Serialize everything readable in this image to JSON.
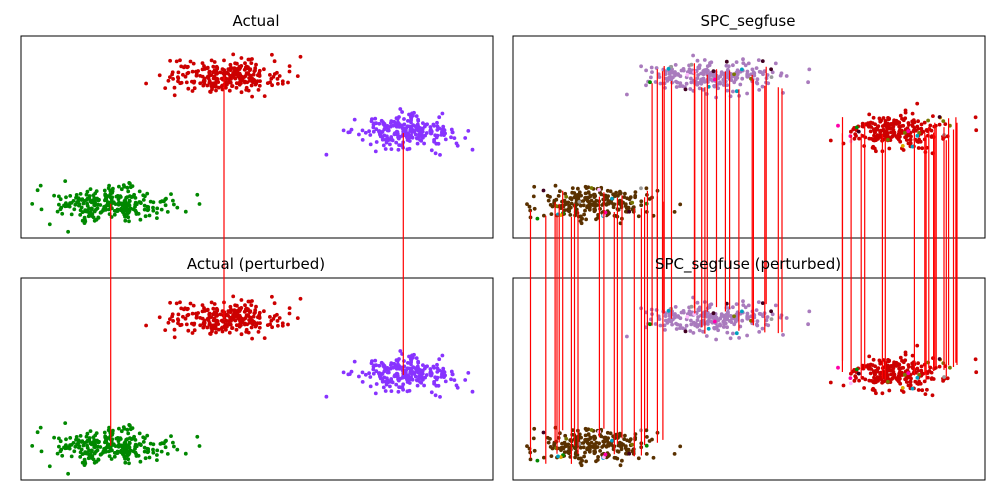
{
  "chart_data": [
    {
      "type": "scatter",
      "title": "Actual",
      "xlim": [
        0,
        100
      ],
      "ylim": [
        0,
        100
      ],
      "axes_visible": false,
      "series": [
        {
          "color": "#cc0000",
          "cluster_center": [
            43,
            80
          ],
          "spread": [
            6,
            4
          ],
          "count": 260
        },
        {
          "color": "#8833ff",
          "cluster_center": [
            81,
            52
          ],
          "spread": [
            5,
            4
          ],
          "count": 230
        },
        {
          "color": "#008800",
          "cluster_center": [
            19,
            17
          ],
          "spread": [
            6,
            4
          ],
          "count": 260
        }
      ]
    },
    {
      "type": "scatter",
      "title": "SPC_segfuse",
      "xlim": [
        0,
        100
      ],
      "ylim": [
        0,
        100
      ],
      "axes_visible": false,
      "series": [
        {
          "color": "#a97bbd",
          "cluster_center": [
            42,
            80
          ],
          "spread": [
            7,
            4
          ],
          "count": 230
        },
        {
          "color": "#cc0000",
          "cluster_center": [
            81,
            53
          ],
          "spread": [
            5,
            4
          ],
          "count": 230
        },
        {
          "color": "#5a3100",
          "cluster_center": [
            17,
            17
          ],
          "spread": [
            6,
            4
          ],
          "count": 230
        }
      ],
      "outlier_colors": [
        "#ff00aa",
        "#00a0c0",
        "#9b9b9b",
        "#ddaa00",
        "#008800",
        "#400020",
        "#777700",
        "#ffbbff"
      ]
    },
    {
      "type": "scatter",
      "title": "Actual (perturbed)",
      "xlim": [
        0,
        100
      ],
      "ylim": [
        0,
        100
      ],
      "axes_visible": false,
      "series": [
        {
          "color": "#cc0000",
          "cluster_center": [
            43,
            80
          ],
          "spread": [
            6,
            4
          ],
          "count": 260
        },
        {
          "color": "#8833ff",
          "cluster_center": [
            81,
            52
          ],
          "spread": [
            5,
            4
          ],
          "count": 230
        },
        {
          "color": "#008800",
          "cluster_center": [
            19,
            17
          ],
          "spread": [
            6,
            4
          ],
          "count": 260
        }
      ]
    },
    {
      "type": "scatter",
      "title": "SPC_segfuse (perturbed)",
      "xlim": [
        0,
        100
      ],
      "ylim": [
        0,
        100
      ],
      "axes_visible": false,
      "series": [
        {
          "color": "#a97bbd",
          "cluster_center": [
            42,
            80
          ],
          "spread": [
            7,
            4
          ],
          "count": 230
        },
        {
          "color": "#cc0000",
          "cluster_center": [
            81,
            53
          ],
          "spread": [
            5,
            4
          ],
          "count": 230
        },
        {
          "color": "#5a3100",
          "cluster_center": [
            17,
            17
          ],
          "spread": [
            6,
            4
          ],
          "count": 230
        }
      ],
      "outlier_colors": [
        "#ff00aa",
        "#00a0c0",
        "#9b9b9b",
        "#ddaa00",
        "#008800",
        "#400020",
        "#777700",
        "#ffbbff"
      ]
    }
  ],
  "connectors": {
    "color": "#ff0000",
    "actual_links": [
      {
        "x": 43,
        "top_y": 80,
        "bottom_y": 80
      },
      {
        "x": 81,
        "top_y": 52,
        "bottom_y": 52
      },
      {
        "x": 19,
        "top_y": 17,
        "bottom_y": 17
      }
    ],
    "segfuse_link_count": 60
  }
}
